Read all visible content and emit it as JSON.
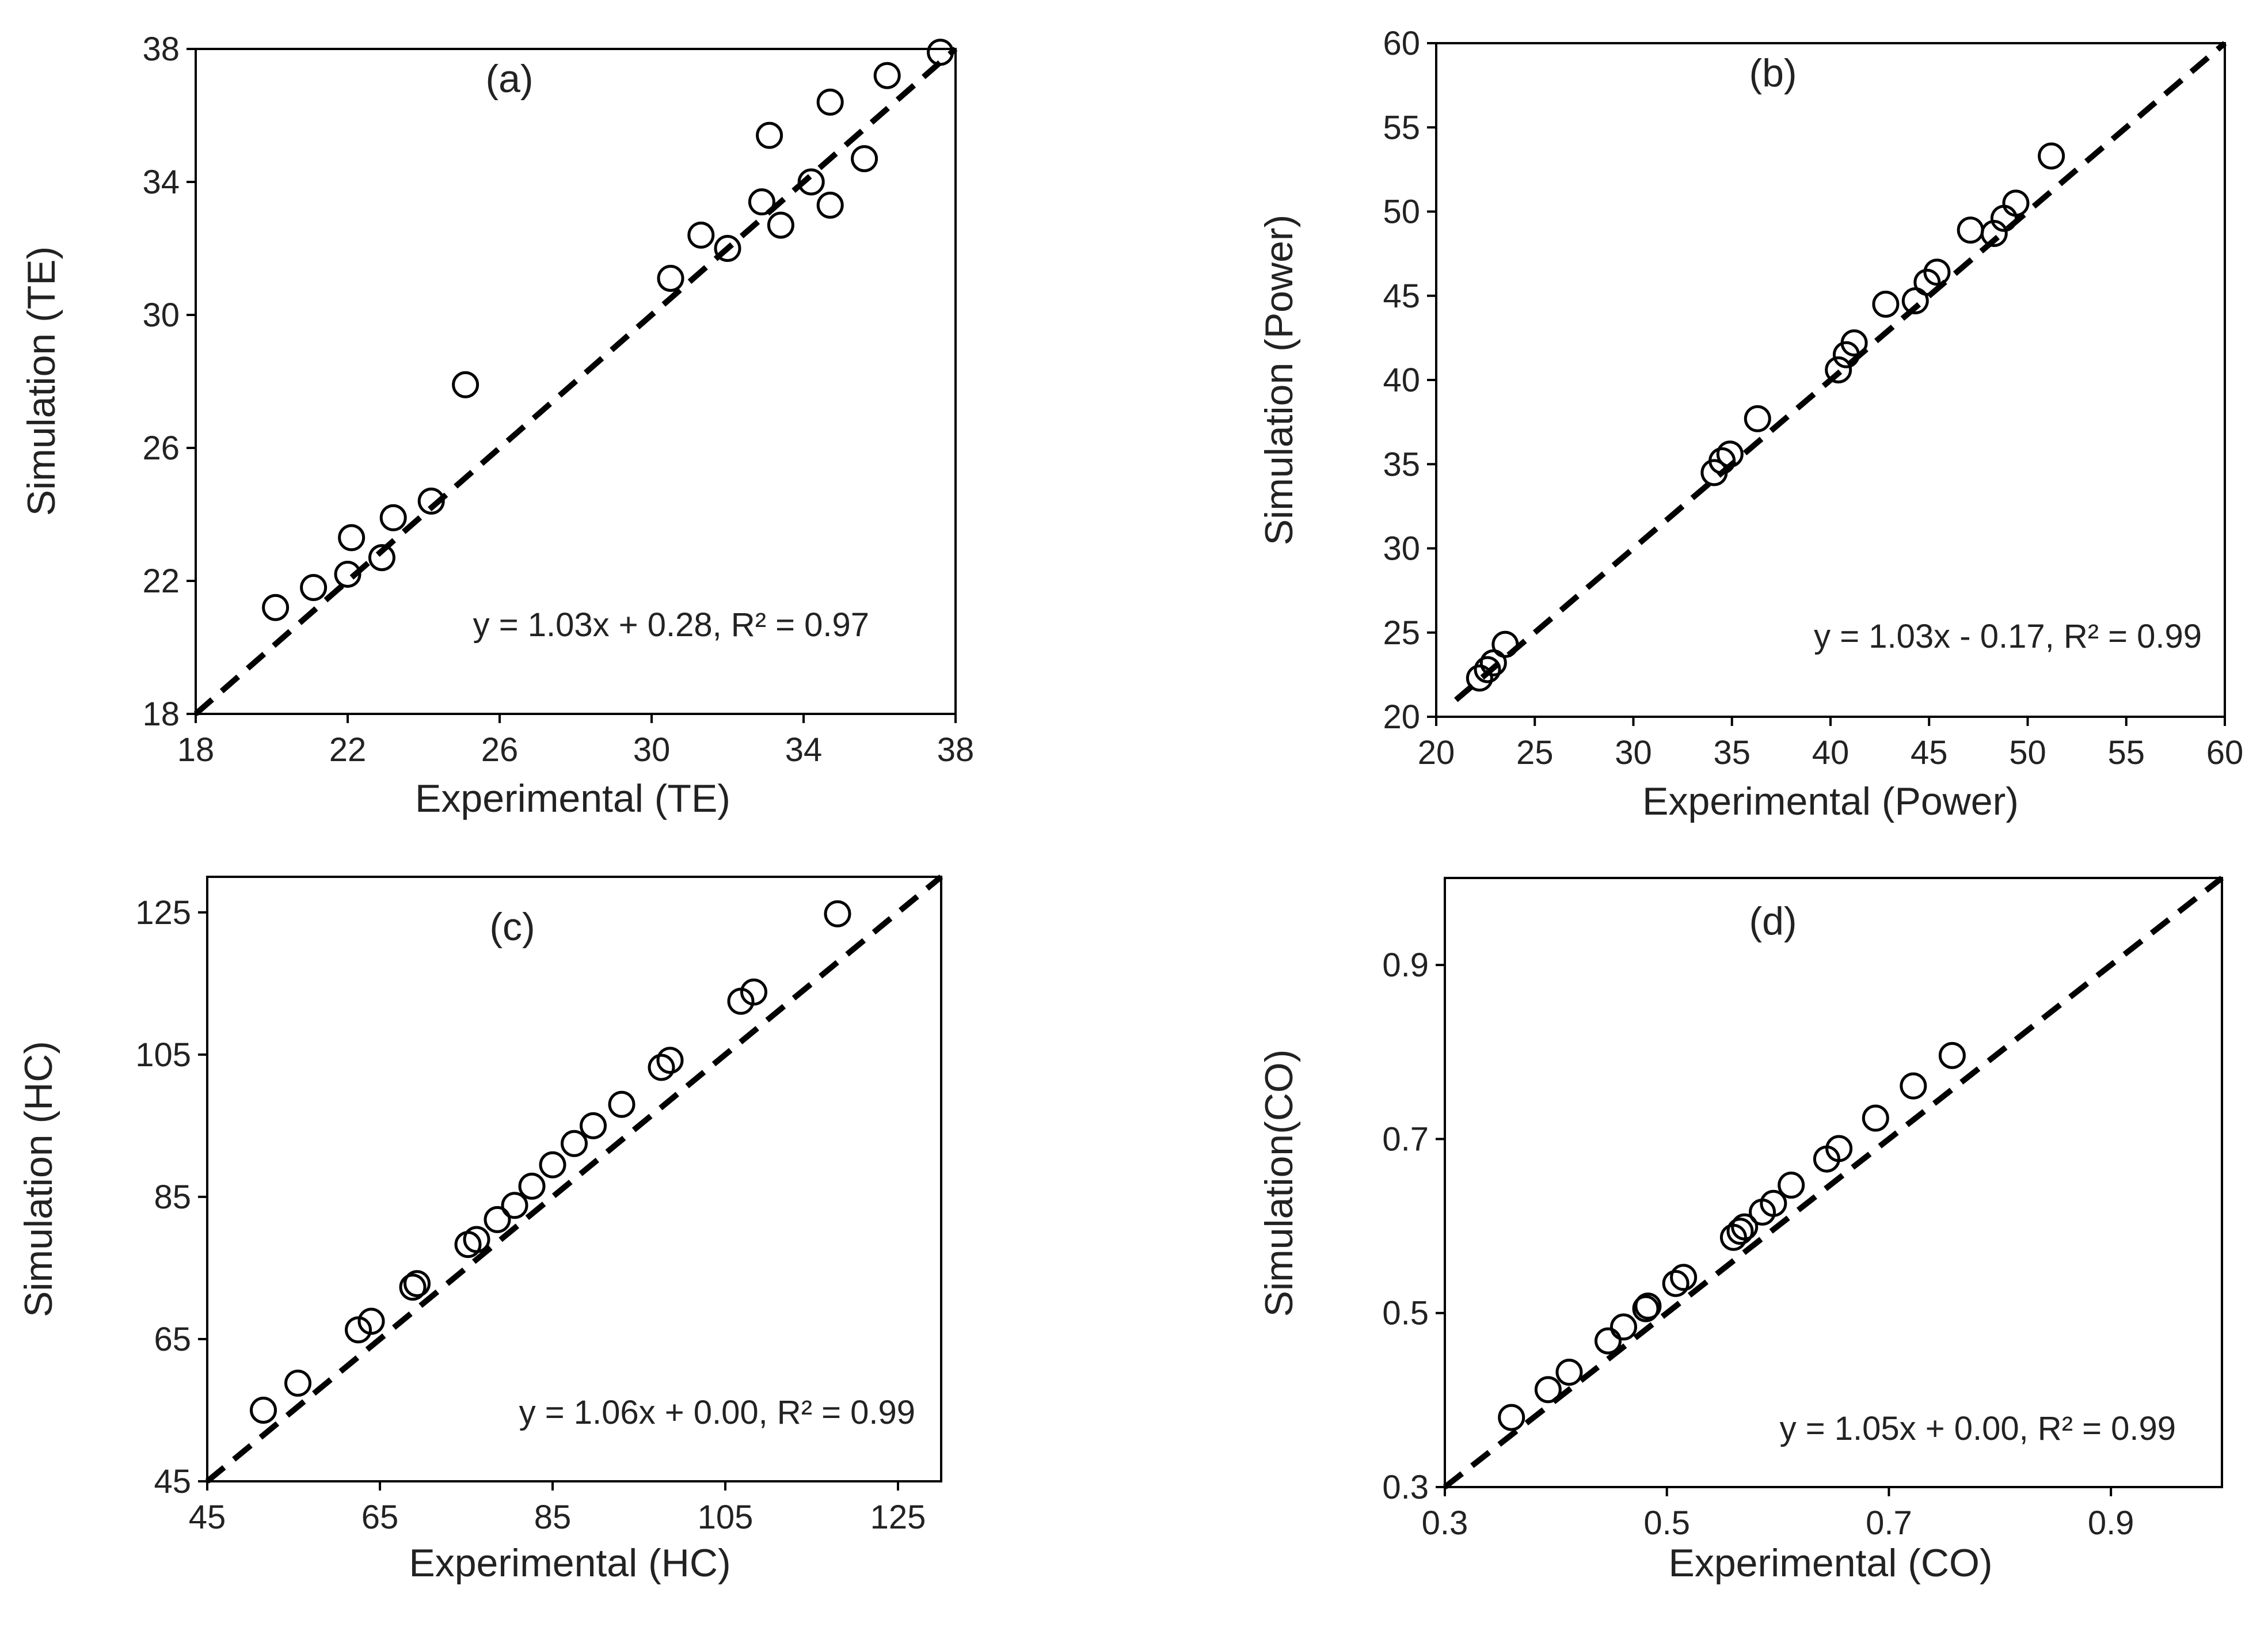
{
  "chart_data": [
    {
      "type": "scatter",
      "panel_label": "(a)",
      "xlabel": "Experimental (TE)",
      "ylabel": "Simulation (TE)",
      "xlim": [
        18,
        38
      ],
      "ylim": [
        18,
        38
      ],
      "xticks": [
        18,
        22,
        26,
        30,
        34,
        38
      ],
      "yticks": [
        18,
        22,
        26,
        30,
        34,
        38
      ],
      "tick_decimals": 0,
      "equation": "y = 1.03x + 0.28, R² = 0.97",
      "fit_line": {
        "from": [
          18,
          18
        ],
        "to": [
          38,
          38
        ],
        "style": "dashed"
      },
      "points": [
        [
          20.1,
          21.2
        ],
        [
          21.1,
          21.8
        ],
        [
          22.0,
          22.2
        ],
        [
          22.9,
          22.7
        ],
        [
          22.1,
          23.3
        ],
        [
          23.2,
          23.9
        ],
        [
          24.2,
          24.4
        ],
        [
          25.1,
          27.9
        ],
        [
          30.5,
          31.1
        ],
        [
          31.3,
          32.4
        ],
        [
          32.0,
          32.0
        ],
        [
          32.9,
          33.4
        ],
        [
          33.4,
          32.7
        ],
        [
          33.1,
          35.4
        ],
        [
          34.2,
          34.0
        ],
        [
          34.7,
          33.3
        ],
        [
          34.7,
          36.4
        ],
        [
          35.6,
          34.7
        ],
        [
          36.2,
          37.2
        ],
        [
          37.6,
          37.9
        ]
      ]
    },
    {
      "type": "scatter",
      "panel_label": "(b)",
      "xlabel": "Experimental (Power)",
      "ylabel": "Simulation (Power)",
      "xlim": [
        20,
        60
      ],
      "ylim": [
        20,
        60
      ],
      "xticks": [
        20,
        25,
        30,
        35,
        40,
        45,
        50,
        55,
        60
      ],
      "yticks": [
        20,
        25,
        30,
        35,
        40,
        45,
        50,
        55,
        60
      ],
      "tick_decimals": 0,
      "equation": "y = 1.03x - 0.17, R² = 0.99",
      "fit_line": {
        "from": [
          21,
          21
        ],
        "to": [
          60,
          60
        ],
        "style": "dashed"
      },
      "points": [
        [
          22.2,
          22.3
        ],
        [
          22.6,
          22.8
        ],
        [
          22.9,
          23.2
        ],
        [
          23.5,
          24.3
        ],
        [
          34.1,
          34.5
        ],
        [
          34.5,
          35.2
        ],
        [
          34.9,
          35.6
        ],
        [
          36.3,
          37.7
        ],
        [
          40.4,
          40.6
        ],
        [
          40.8,
          41.5
        ],
        [
          41.2,
          42.2
        ],
        [
          42.8,
          44.5
        ],
        [
          44.3,
          44.7
        ],
        [
          44.9,
          45.8
        ],
        [
          45.4,
          46.4
        ],
        [
          47.1,
          48.9
        ],
        [
          48.3,
          48.7
        ],
        [
          48.8,
          49.6
        ],
        [
          49.4,
          50.5
        ],
        [
          51.2,
          53.3
        ]
      ]
    },
    {
      "type": "scatter",
      "panel_label": "(c)",
      "xlabel": "Experimental (HC)",
      "ylabel": "Simulation (HC)",
      "xlim": [
        45,
        130
      ],
      "ylim": [
        45,
        130
      ],
      "xticks": [
        45,
        65,
        85,
        105,
        125
      ],
      "yticks": [
        45,
        65,
        85,
        105,
        125
      ],
      "tick_decimals": 0,
      "equation": "y = 1.06x + 0.00, R² = 0.99",
      "fit_line": {
        "from": [
          45,
          45
        ],
        "to": [
          130,
          130
        ],
        "style": "dashed"
      },
      "points": [
        [
          51.5,
          55.0
        ],
        [
          55.5,
          58.8
        ],
        [
          62.5,
          66.3
        ],
        [
          64.0,
          67.5
        ],
        [
          68.8,
          72.3
        ],
        [
          69.3,
          72.8
        ],
        [
          75.2,
          78.3
        ],
        [
          76.2,
          79.0
        ],
        [
          78.6,
          81.8
        ],
        [
          80.6,
          83.8
        ],
        [
          82.6,
          86.5
        ],
        [
          85.0,
          89.5
        ],
        [
          87.5,
          92.5
        ],
        [
          89.7,
          95.0
        ],
        [
          93.0,
          98.0
        ],
        [
          97.6,
          103.2
        ],
        [
          98.6,
          104.2
        ],
        [
          106.8,
          112.5
        ],
        [
          108.3,
          113.8
        ],
        [
          118.0,
          124.8
        ]
      ]
    },
    {
      "type": "scatter",
      "panel_label": "(d)",
      "xlabel": "Experimental (CO)",
      "ylabel": "Simulation(CO)",
      "xlim": [
        0.3,
        1.0
      ],
      "ylim": [
        0.3,
        1.0
      ],
      "xticks": [
        0.3,
        0.5,
        0.7,
        0.9
      ],
      "yticks": [
        0.3,
        0.5,
        0.7,
        0.9
      ],
      "tick_decimals": 1,
      "equation": "y = 1.05x + 0.00, R² = 0.99",
      "fit_line": {
        "from": [
          0.3,
          0.3
        ],
        "to": [
          1.0,
          1.0
        ],
        "style": "dashed"
      },
      "points": [
        [
          0.36,
          0.38
        ],
        [
          0.393,
          0.412
        ],
        [
          0.412,
          0.432
        ],
        [
          0.447,
          0.468
        ],
        [
          0.461,
          0.484
        ],
        [
          0.481,
          0.505
        ],
        [
          0.483,
          0.508
        ],
        [
          0.508,
          0.534
        ],
        [
          0.515,
          0.541
        ],
        [
          0.56,
          0.587
        ],
        [
          0.566,
          0.594
        ],
        [
          0.57,
          0.599
        ],
        [
          0.586,
          0.616
        ],
        [
          0.596,
          0.626
        ],
        [
          0.612,
          0.647
        ],
        [
          0.644,
          0.677
        ],
        [
          0.655,
          0.689
        ],
        [
          0.688,
          0.724
        ],
        [
          0.722,
          0.761
        ],
        [
          0.757,
          0.796
        ]
      ]
    }
  ]
}
